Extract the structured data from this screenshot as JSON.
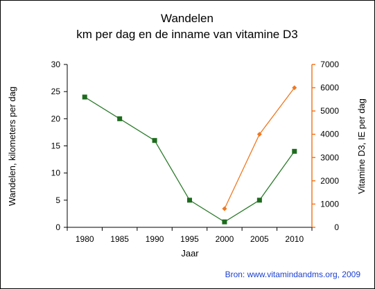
{
  "chart_data": {
    "type": "line",
    "title": "Wandelen",
    "subtitle": "km per dag en de inname van vitamine D3",
    "xlabel": "Jaar",
    "ylabel": "Wandelen, kilometers per dag",
    "y2label": "Vitamine D3, IE per dag",
    "source": "Bron: www.vitamindandms.org, 2009",
    "x_ticks": [
      "1980",
      "1985",
      "1990",
      "1995",
      "2000",
      "2005",
      "2010"
    ],
    "ylim": [
      0,
      30
    ],
    "y_ticks": [
      "0",
      "5",
      "10",
      "15",
      "20",
      "25",
      "30"
    ],
    "y2lim": [
      0,
      7000
    ],
    "y2_ticks": [
      "0",
      "1000",
      "2000",
      "3000",
      "4000",
      "5000",
      "6000",
      "7000"
    ],
    "grid": false,
    "series": [
      {
        "axis": "left",
        "color": "#2a7a2a",
        "marker": "square",
        "x": [
          1980,
          1985,
          1990,
          1995,
          2000,
          2005,
          2010
        ],
        "values": [
          24,
          20,
          16,
          5,
          1,
          5,
          14
        ]
      },
      {
        "axis": "right",
        "color": "#f07820",
        "marker": "diamond",
        "x": [
          2000,
          2005,
          2010
        ],
        "values": [
          800,
          4000,
          6000
        ]
      }
    ]
  }
}
